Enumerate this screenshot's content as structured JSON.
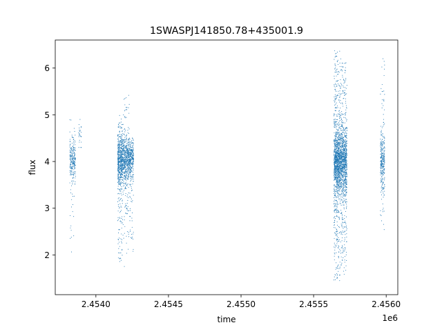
{
  "chart_data": {
    "type": "scatter",
    "title": "1SWASPJ141850.78+435001.9",
    "xlabel": "time",
    "ylabel": "flux",
    "x_offset_label": "1e6",
    "xlim": [
      2.45372,
      2.45608
    ],
    "ylim": [
      1.15,
      6.6
    ],
    "x_ticks": [
      2.454,
      2.4545,
      2.455,
      2.4555,
      2.456
    ],
    "x_tick_labels": [
      "2.4540",
      "2.4545",
      "2.4550",
      "2.4555",
      "2.4560"
    ],
    "y_ticks": [
      2,
      3,
      4,
      5,
      6
    ],
    "y_tick_labels": [
      "2",
      "3",
      "4",
      "5",
      "6"
    ],
    "grid": false,
    "point_color": "#1f77b4",
    "series": [
      {
        "name": "",
        "clusters": [
          {
            "x_range": [
              2.45382,
              2.45386
            ],
            "center": 4.05,
            "spread": 0.22,
            "tail_low": 1.95,
            "tail_high": 4.95,
            "tail_frac": 0.18,
            "count": 260
          },
          {
            "x_range": [
              2.45388,
              2.4539
            ],
            "center": 4.6,
            "spread": 0.15,
            "tail_low": 4.3,
            "tail_high": 4.9,
            "tail_frac": 0.0,
            "count": 25
          },
          {
            "x_range": [
              2.45415,
              2.45418
            ],
            "center": 4.05,
            "spread": 0.28,
            "tail_low": 1.85,
            "tail_high": 5.0,
            "tail_frac": 0.35,
            "count": 520
          },
          {
            "x_range": [
              2.45418,
              2.45423
            ],
            "center": 4.05,
            "spread": 0.25,
            "tail_low": 1.75,
            "tail_high": 5.45,
            "tail_frac": 0.28,
            "count": 600
          },
          {
            "x_range": [
              2.45423,
              2.45426
            ],
            "center": 4.05,
            "spread": 0.2,
            "tail_low": 2.05,
            "tail_high": 4.5,
            "tail_frac": 0.22,
            "count": 300
          },
          {
            "x_range": [
              2.45564,
              2.45568
            ],
            "center": 4.0,
            "spread": 0.35,
            "tail_low": 1.45,
            "tail_high": 6.4,
            "tail_frac": 0.45,
            "count": 1100
          },
          {
            "x_range": [
              2.45568,
              2.45573
            ],
            "center": 4.0,
            "spread": 0.35,
            "tail_low": 1.55,
            "tail_high": 6.2,
            "tail_frac": 0.45,
            "count": 1100
          },
          {
            "x_range": [
              2.45596,
              2.45599
            ],
            "center": 4.0,
            "spread": 0.3,
            "tail_low": 2.5,
            "tail_high": 6.2,
            "tail_frac": 0.3,
            "count": 320
          }
        ]
      }
    ]
  }
}
